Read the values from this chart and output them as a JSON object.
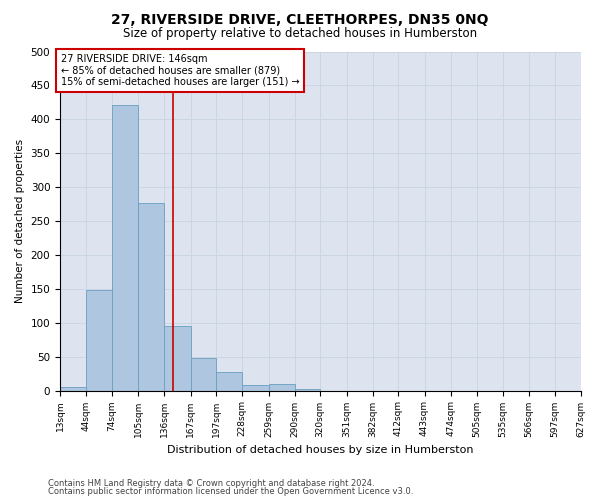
{
  "title": "27, RIVERSIDE DRIVE, CLEETHORPES, DN35 0NQ",
  "subtitle": "Size of property relative to detached houses in Humberston",
  "xlabel": "Distribution of detached houses by size in Humberston",
  "ylabel": "Number of detached properties",
  "footnote1": "Contains HM Land Registry data © Crown copyright and database right 2024.",
  "footnote2": "Contains public sector information licensed under the Open Government Licence v3.0.",
  "bar_edges": [
    13,
    44,
    74,
    105,
    136,
    167,
    197,
    228,
    259,
    290,
    320,
    351,
    382,
    412,
    443,
    474,
    505,
    535,
    566,
    597,
    627
  ],
  "bar_heights": [
    5,
    148,
    421,
    276,
    95,
    48,
    27,
    8,
    10,
    2,
    0,
    0,
    0,
    0,
    0,
    0,
    0,
    0,
    0,
    0
  ],
  "bar_color": "#aec6df",
  "bar_edge_color": "#6a9fc0",
  "property_line_x": 146,
  "property_line_color": "#cc0000",
  "ylim": [
    0,
    500
  ],
  "xlim": [
    13,
    627
  ],
  "annotation_text": "27 RIVERSIDE DRIVE: 146sqm\n← 85% of detached houses are smaller (879)\n15% of semi-detached houses are larger (151) →",
  "annotation_box_color": "#cc0000",
  "grid_color": "#c8d4e4",
  "yticks": [
    0,
    50,
    100,
    150,
    200,
    250,
    300,
    350,
    400,
    450,
    500
  ],
  "xtick_labels": [
    "13sqm",
    "44sqm",
    "74sqm",
    "105sqm",
    "136sqm",
    "167sqm",
    "197sqm",
    "228sqm",
    "259sqm",
    "290sqm",
    "320sqm",
    "351sqm",
    "382sqm",
    "412sqm",
    "443sqm",
    "474sqm",
    "505sqm",
    "535sqm",
    "566sqm",
    "597sqm",
    "627sqm"
  ],
  "bg_color": "#dde4ef"
}
